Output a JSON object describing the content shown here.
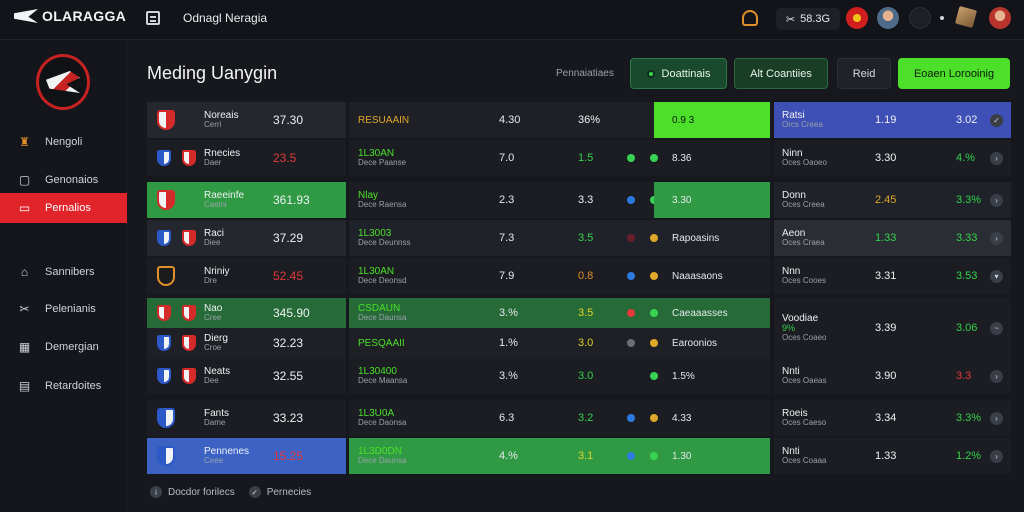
{
  "app": {
    "logo_text": "OLARAGGA",
    "top_title": "Odnagl Neragia",
    "balance": "58.3G"
  },
  "sidebar": {
    "items": [
      {
        "label": "Nengoli",
        "icon": "trophy-icon",
        "active": false
      },
      {
        "label": "Genonaios",
        "icon": "note-icon",
        "active": false
      },
      {
        "label": "Pernalios",
        "icon": "calendar-icon",
        "active": true
      },
      {
        "label": "Sannibers",
        "icon": "home-icon",
        "active": false
      },
      {
        "label": "Pelenianis",
        "icon": "tools-icon",
        "active": false
      },
      {
        "label": "Demergian",
        "icon": "grid-icon",
        "active": false
      },
      {
        "label": "Retardoites",
        "icon": "document-icon",
        "active": false
      }
    ]
  },
  "header": {
    "title": "Meding Uanygin",
    "subtle_label": "Pennaiatiaes",
    "buttons": {
      "btn1": "Doattinais",
      "btn2": "Alt Coantiies",
      "btn3": "Reid",
      "btn4": "Eoaen Lorooinig"
    }
  },
  "colors": {
    "green": "#2fb347",
    "bright_green": "#4ce02a",
    "red": "#e0242a",
    "blue": "#3e4fb5",
    "orange": "#e0902a"
  },
  "left_table": {
    "rows": [
      {
        "name": "Noreais",
        "sub": "Cerri",
        "value": "37.30",
        "value_color": "#eef0f3",
        "bg": "#24272e"
      },
      {
        "name": "Rnecies",
        "sub": "Daer",
        "value": "23.5",
        "value_color": "#e03a3a",
        "bg": "#1b1d23"
      },
      {
        "name": "Raeeinfe",
        "sub": "Caeini",
        "value": "361.93",
        "value_color": "#eef0f3",
        "bg": "#2f9a43"
      },
      {
        "name": "Raci",
        "sub": "Diee",
        "value": "37.29",
        "value_color": "#eef0f3",
        "bg": "#24272e"
      },
      {
        "name": "Nriniy",
        "sub": "Dre",
        "value": "52.45",
        "value_color": "#e03a3a",
        "bg": "#1b1d23"
      },
      {
        "name": "Nao",
        "sub": "Cree",
        "value": "345.90",
        "value_color": "#eef0f3",
        "bg": "#256a37"
      },
      {
        "name": "Dierg",
        "sub": "Croe",
        "value": "32.23",
        "value_color": "#eef0f3",
        "bg": "#1e2026"
      },
      {
        "name": "Neats",
        "sub": "Dee",
        "value": "32.55",
        "value_color": "#eef0f3",
        "bg": "#1b1d23"
      },
      {
        "name": "Fants",
        "sub": "Dame",
        "value": "33.23",
        "value_color": "#eef0f3",
        "bg": "#1b1d23"
      },
      {
        "name": "Pennenes",
        "sub": "Ceee",
        "value": "15.25",
        "value_color": "#e03a3a",
        "bg": "#3c62c4"
      }
    ]
  },
  "mid_table": {
    "rows": [
      {
        "name": "RESUAAIN",
        "sub": "",
        "a": "4.30",
        "b": "36%",
        "b_color": "#eef0f3",
        "dots": [],
        "tag": "0.9 3",
        "bg": "#1e2026",
        "bright": true
      },
      {
        "name": "1L30AN",
        "sub": "Dece Paanse",
        "a": "7.0",
        "b": "1.5",
        "b_color": "#35d34b",
        "dots": [
          "#39d353",
          "#39d353"
        ],
        "tag": "8.36",
        "bg": "#1b1d23",
        "bright": false
      },
      {
        "name": "Nlay",
        "sub": "Dece Raensa",
        "a": "2.3",
        "b": "3.3",
        "b_color": "#eef0f3",
        "dots": [
          "#2c7ae0",
          "#39d353"
        ],
        "tag": "3.30",
        "bg": "#1b1d23",
        "bright": false,
        "green_tail": true
      },
      {
        "name": "1L3003",
        "sub": "Dece Deunnss",
        "a": "7.3",
        "b": "3.5",
        "b_color": "#35d34b",
        "dots": [
          "#6a1f2a",
          "#e0a82a"
        ],
        "tag": "Rapoasins",
        "bg": "#1f2229",
        "bright": false
      },
      {
        "name": "1L30AN",
        "sub": "Dece Deonsd",
        "a": "7.9",
        "b": "0.8",
        "b_color": "#e0902a",
        "dots": [
          "#2c7ae0",
          "#e0a82a"
        ],
        "tag": "Naaasaons",
        "bg": "#1b1d23",
        "bright": false
      },
      {
        "name": "CSDAUN",
        "sub": "Dece Daunsa",
        "a": "3.%",
        "b": "3.5",
        "b_color": "#e0d32a",
        "dots": [
          "#e03a3a",
          "#39d353"
        ],
        "tag": "Caeaaasses",
        "bg": "#256a37",
        "bright": false
      },
      {
        "name": "PESQAAII",
        "sub": "",
        "a": "1.%",
        "b": "3.0",
        "b_color": "#e0d32a",
        "dots": [
          "#6a6e78",
          "#e0a82a"
        ],
        "tag": "Earoonios",
        "bg": "#1e2026",
        "bright": false
      },
      {
        "name": "1L30400",
        "sub": "Dece Maansa",
        "a": "3.%",
        "b": "3.0",
        "b_color": "#35d34b",
        "dots": [
          "#39d353"
        ],
        "tag": "1.5%",
        "bg": "#1b1d23",
        "bright": false
      },
      {
        "name": "1L3U0A",
        "sub": "Dece Daonsa",
        "a": "6.3",
        "b": "3.2",
        "b_color": "#35d34b",
        "dots": [
          "#2c7ae0",
          "#e0a82a"
        ],
        "tag": "4.33",
        "bg": "#1b1d23",
        "bright": false
      },
      {
        "name": "1L3D0DN",
        "sub": "Dece Daunsa",
        "a": "4.%",
        "b": "3.1",
        "b_color": "#e0d32a",
        "dots": [
          "#2c7ae0",
          "#39d353"
        ],
        "tag": "1.30",
        "bg": "#2f9a43",
        "bright": false
      }
    ]
  },
  "right_table": {
    "rows": [
      {
        "name": "Ratsi",
        "sub": "Orcs Creea",
        "a": "1.19",
        "b": "3.02",
        "b_color": "#eef0f3",
        "chev": "✓",
        "bg": "#3e4fb5"
      },
      {
        "name": "Ninn",
        "sub": "Oces Oaoeo",
        "a": "3.30",
        "b": "4.%",
        "b_color": "#35d34b",
        "chev": "›",
        "bg": "#1b1d23"
      },
      {
        "name": "Donn",
        "sub": "Oces Creea",
        "a": "2.45",
        "b": "3.3%",
        "b_color": "#35d34b",
        "chev": "›",
        "bg": "#1f2229",
        "a_color": "#e0a82a"
      },
      {
        "name": "Aeon",
        "sub": "Oces Craea",
        "a": "1.33",
        "b": "3.33",
        "b_color": "#35d34b",
        "chev": "›",
        "bg": "#2a2d34",
        "a_color": "#35d34b"
      },
      {
        "name": "Nnn",
        "sub": "Oces Cooes",
        "a": "3.31",
        "b": "3.53",
        "b_color": "#35d34b",
        "chev": "▾",
        "bg": "#1b1d23"
      },
      {
        "name": "Voodiae",
        "sub": "Oces Coaeo",
        "a": "3.39",
        "b": "3.06",
        "b_color": "#35d34b",
        "chev": "~",
        "bg": "#1b1d23",
        "tall": true,
        "pre": "9%"
      },
      {
        "name": "Nnti",
        "sub": "Oces Oaeas",
        "a": "3.90",
        "b": "3.3",
        "b_color": "#e03a3a",
        "chev": "›",
        "bg": "#1b1d23"
      },
      {
        "name": "Roeis",
        "sub": "Oces Caeso",
        "a": "3.34",
        "b": "3.3%",
        "b_color": "#35d34b",
        "chev": "›",
        "bg": "#1b1d23"
      },
      {
        "name": "Nnti",
        "sub": "Oces Coaaa",
        "a": "1.33",
        "b": "1.2%",
        "b_color": "#35d34b",
        "chev": "›",
        "bg": "#1b1d23"
      }
    ]
  },
  "legend": {
    "items": [
      "Docdor forilecs",
      "Pernecies"
    ]
  }
}
